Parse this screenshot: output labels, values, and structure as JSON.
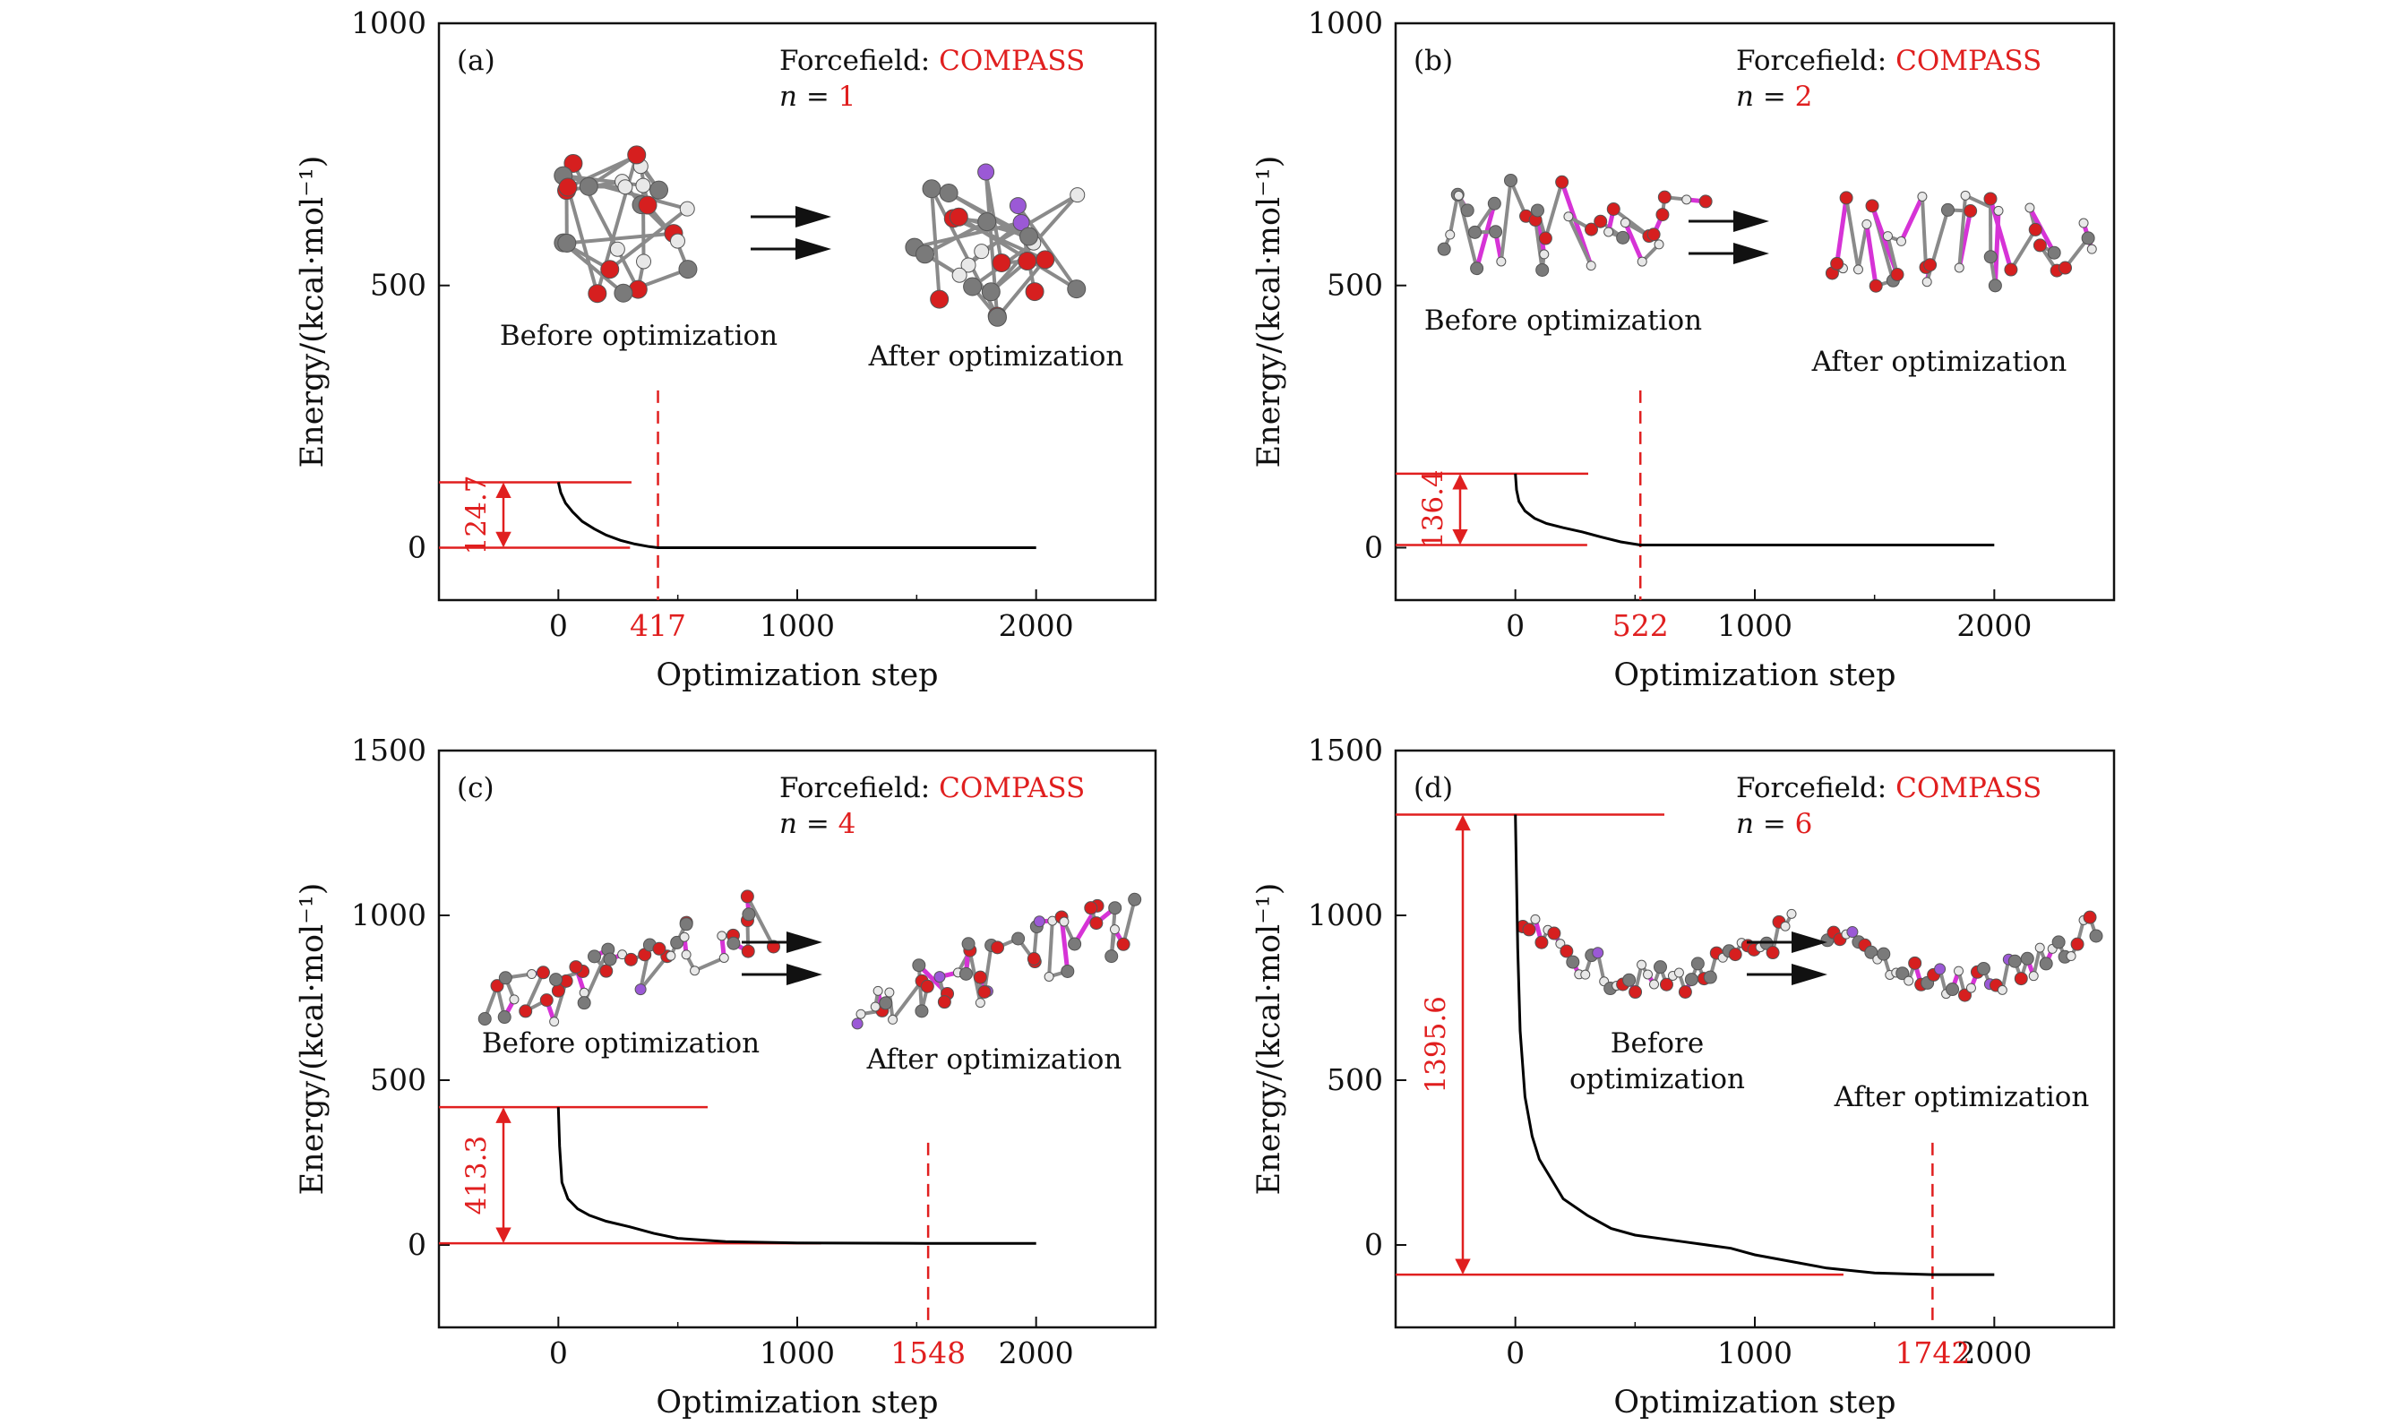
{
  "colors": {
    "accent_red": "#e01f1f",
    "curve": "#000000",
    "carbon": "#7a7a7a",
    "oxygen": "#d61f1f",
    "hydrogen": "#e8e8e8",
    "purple_atom": "#9b59d6",
    "magenta_bond": "#d633d6"
  },
  "chart_data": [
    {
      "type": "line",
      "panel_label": "(a)",
      "forcefield_label": "Forcefield: ",
      "forcefield_value": "COMPASS",
      "n_label": "n = ",
      "n_value": "1",
      "before_label": "Before optimization",
      "after_label": "After optimization",
      "xlabel": "Optimization step",
      "ylabel": "Energy/(kcal·mol⁻¹)",
      "xlim": [
        -500,
        2500
      ],
      "ylim": [
        -100,
        1000
      ],
      "yticks": [
        0,
        500,
        1000
      ],
      "xticks": [
        0,
        1000,
        2000
      ],
      "marked_step": 417,
      "energy_drop_label": "124.7",
      "drop_top": 124.7,
      "drop_bottom": 0,
      "series": [
        {
          "x": [
            0,
            10,
            30,
            60,
            100,
            150,
            200,
            260,
            320,
            380,
            417,
            600,
            1000,
            1500,
            2000
          ],
          "y": [
            124.7,
            105,
            85,
            68,
            50,
            36,
            24,
            14,
            7,
            2,
            0,
            0,
            0,
            0,
            0
          ]
        }
      ]
    },
    {
      "type": "line",
      "panel_label": "(b)",
      "forcefield_label": "Forcefield: ",
      "forcefield_value": "COMPASS",
      "n_label": "n = ",
      "n_value": "2",
      "before_label": "Before optimization",
      "after_label": "After optimization",
      "xlabel": "Optimization step",
      "ylabel": "Energy/(kcal·mol⁻¹)",
      "xlim": [
        -500,
        2500
      ],
      "ylim": [
        -100,
        1000
      ],
      "yticks": [
        0,
        500,
        1000
      ],
      "xticks": [
        0,
        1000,
        2000
      ],
      "marked_step": 522,
      "energy_drop_label": "136.4",
      "drop_top": 141,
      "drop_bottom": 5,
      "series": [
        {
          "x": [
            0,
            5,
            15,
            40,
            80,
            130,
            200,
            280,
            360,
            440,
            522,
            800,
            1200,
            1600,
            2000
          ],
          "y": [
            141,
            110,
            88,
            70,
            56,
            46,
            38,
            30,
            20,
            11,
            5,
            5,
            5,
            5,
            5
          ]
        }
      ]
    },
    {
      "type": "line",
      "panel_label": "(c)",
      "forcefield_label": "Forcefield: ",
      "forcefield_value": "COMPASS",
      "n_label": "n = ",
      "n_value": "4",
      "before_label": "Before optimization",
      "after_label": "After optimization",
      "xlabel": "Optimization step",
      "ylabel": "Energy/(kcal·mol⁻¹)",
      "xlim": [
        -500,
        2500
      ],
      "ylim": [
        -250,
        1500
      ],
      "yticks": [
        0,
        500,
        1000,
        1500
      ],
      "xticks": [
        0,
        1000,
        2000
      ],
      "marked_step": 1548,
      "energy_drop_label": "413.3",
      "drop_top": 418,
      "drop_bottom": 5,
      "series": [
        {
          "x": [
            0,
            5,
            15,
            40,
            80,
            130,
            200,
            300,
            400,
            500,
            700,
            1000,
            1548,
            2000
          ],
          "y": [
            418,
            300,
            190,
            140,
            110,
            90,
            72,
            55,
            35,
            20,
            10,
            6,
            5,
            5
          ]
        }
      ]
    },
    {
      "type": "line",
      "panel_label": "(d)",
      "forcefield_label": "Forcefield: ",
      "forcefield_value": "COMPASS",
      "n_label": "n = ",
      "n_value": "6",
      "before_label": "Before\noptimization",
      "after_label": "After optimization",
      "xlabel": "Optimization step",
      "ylabel": "Energy/(kcal·mol⁻¹)",
      "xlim": [
        -500,
        2500
      ],
      "ylim": [
        -250,
        1500
      ],
      "yticks": [
        0,
        500,
        1000,
        1500
      ],
      "xticks": [
        0,
        1000,
        2000
      ],
      "marked_step": 1742,
      "energy_drop_label": "1395.6",
      "drop_top": 1305.6,
      "drop_bottom": -90,
      "series": [
        {
          "x": [
            0,
            10,
            20,
            40,
            70,
            100,
            150,
            200,
            300,
            400,
            500,
            700,
            900,
            1000,
            1150,
            1300,
            1500,
            1742,
            2000
          ],
          "y": [
            1305.6,
            900,
            650,
            450,
            330,
            260,
            200,
            140,
            90,
            50,
            30,
            10,
            -10,
            -30,
            -50,
            -70,
            -85,
            -90,
            -90
          ]
        }
      ]
    }
  ]
}
